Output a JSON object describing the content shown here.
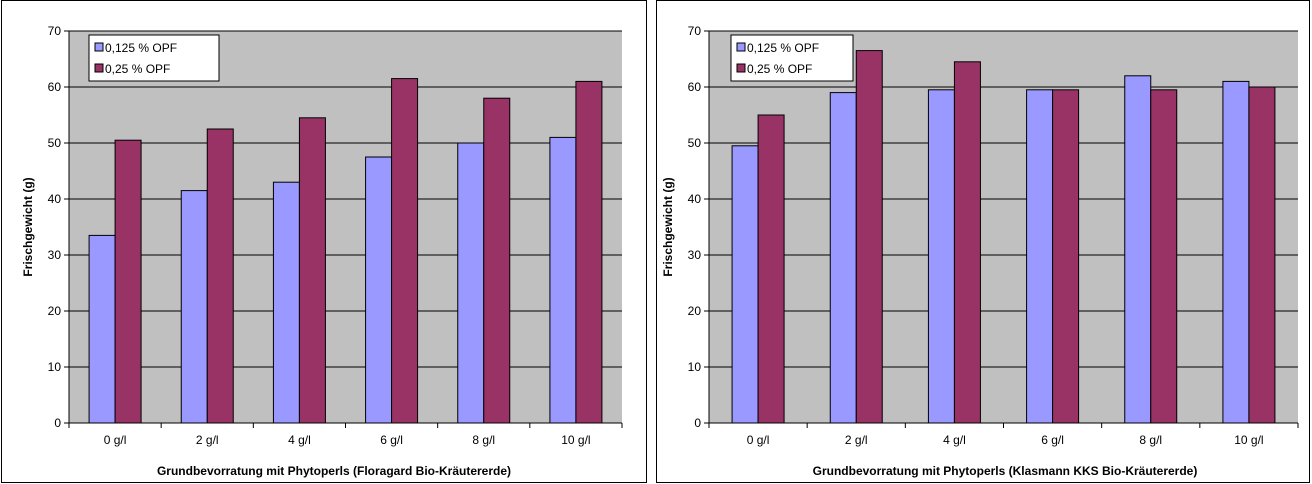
{
  "colors": {
    "series1": "#9999ff",
    "series2": "#993366",
    "plot_bg": "#c0c0c0"
  },
  "chart_data": [
    {
      "type": "bar",
      "categories": [
        "0 g/l",
        "2 g/l",
        "4 g/l",
        "6 g/l",
        "8 g/l",
        "10 g/l"
      ],
      "series": [
        {
          "name": "0,125 % OPF",
          "values": [
            33.5,
            41.5,
            43,
            47.5,
            50,
            51
          ]
        },
        {
          "name": "0,25 % OPF",
          "values": [
            50.5,
            52.5,
            54.5,
            61.5,
            58,
            61
          ]
        }
      ],
      "xlabel": "Grundbevorratung mit Phytoperls (Floragard Bio-Kräutererde)",
      "ylabel": "Frischgewicht (g)",
      "ylim": [
        0,
        70
      ],
      "yticks": [
        0,
        10,
        20,
        30,
        40,
        50,
        60,
        70
      ],
      "grid": true,
      "legend": "top-left"
    },
    {
      "type": "bar",
      "categories": [
        "0 g/l",
        "2 g/l",
        "4 g/l",
        "6 g/l",
        "8 g/l",
        "10 g/l"
      ],
      "series": [
        {
          "name": "0,125 % OPF",
          "values": [
            49.5,
            59,
            59.5,
            59.5,
            62,
            61
          ]
        },
        {
          "name": "0,25 % OPF",
          "values": [
            55,
            66.5,
            64.5,
            59.5,
            59.5,
            60
          ]
        }
      ],
      "xlabel": "Grundbevorratung mit Phytoperls (Klasmann KKS Bio-Kräutererde)",
      "ylabel": "Frischgewicht (g)",
      "ylim": [
        0,
        70
      ],
      "yticks": [
        0,
        10,
        20,
        30,
        40,
        50,
        60,
        70
      ],
      "grid": true,
      "legend": "top-left"
    }
  ]
}
